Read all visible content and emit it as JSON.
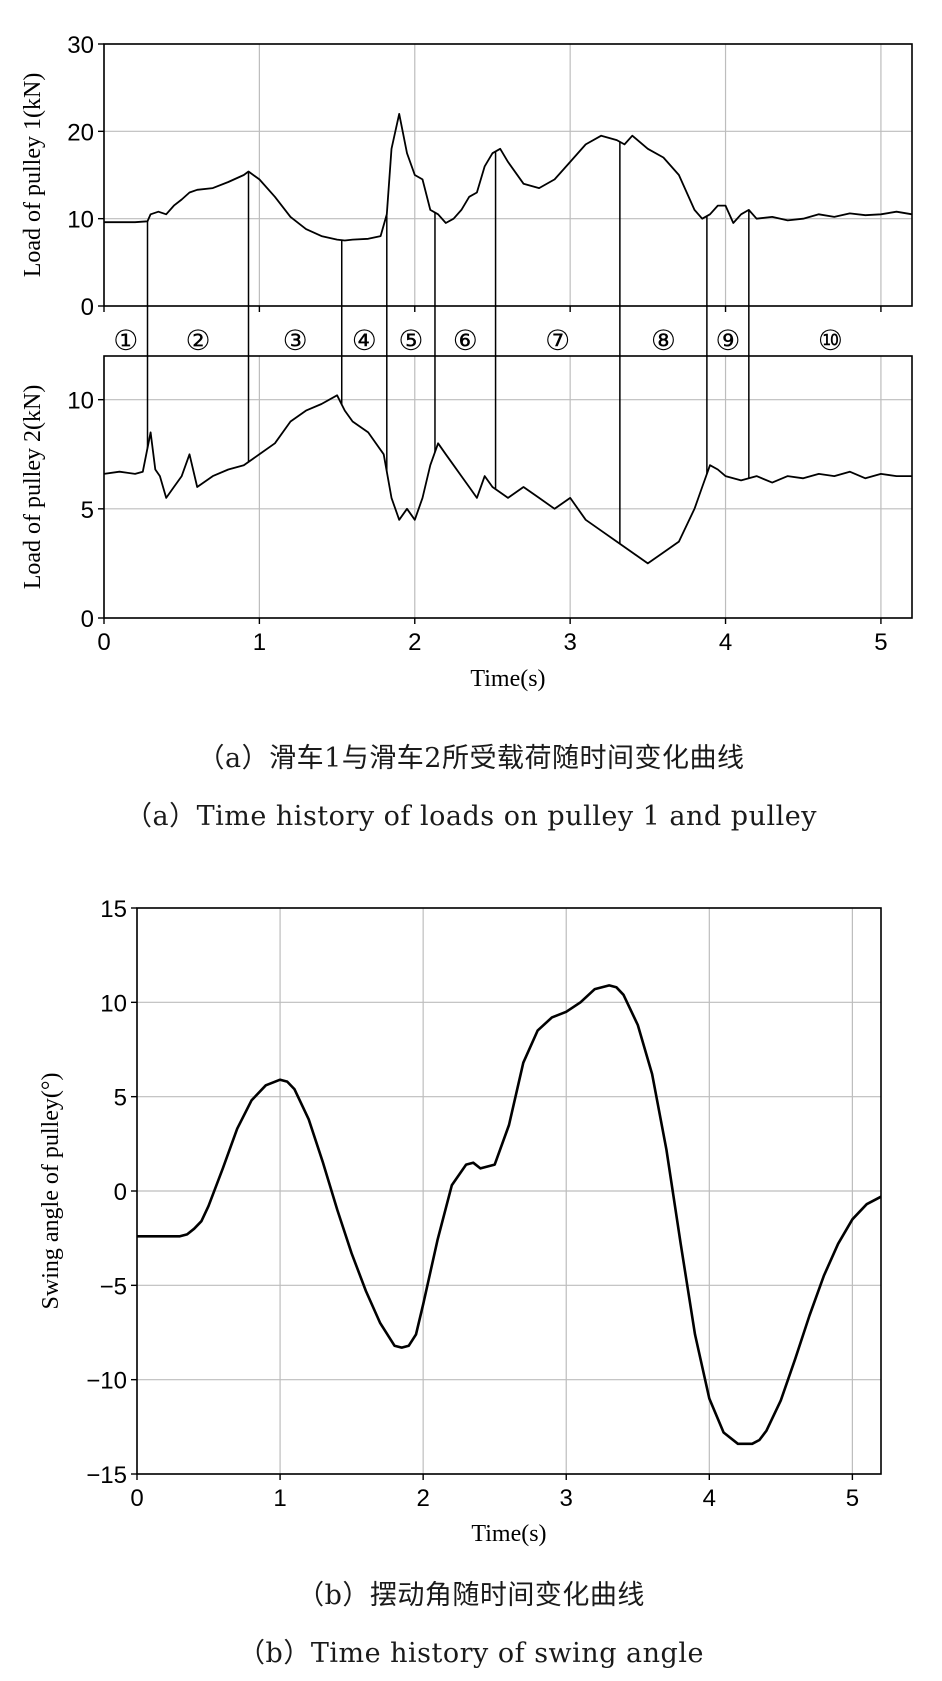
{
  "captions": {
    "a_cn": "（a）滑车1与滑车2所受载荷随时间变化曲线",
    "a_en": "（a）Time history of loads on pulley 1 and pulley",
    "b_cn": "（b）摆动角随时间变化曲线",
    "b_en": "（b）Time history of swing angle"
  },
  "chart_data": [
    {
      "type": "line",
      "title": "",
      "xlabel": "",
      "ylabel": "Load of pulley  1(kN)",
      "xlim": [
        0,
        5.2
      ],
      "ylim": [
        0,
        30
      ],
      "yticks": [
        0,
        10,
        20,
        30
      ],
      "xticks": [
        0,
        1,
        2,
        3,
        4,
        5
      ],
      "grid": true,
      "color": "#000000",
      "series": [
        {
          "x": [
            0,
            0.1,
            0.2,
            0.28,
            0.3,
            0.35,
            0.4,
            0.45,
            0.5,
            0.55,
            0.6,
            0.7,
            0.8,
            0.9,
            0.93,
            1.0,
            1.1,
            1.2,
            1.3,
            1.4,
            1.5,
            1.55,
            1.6,
            1.7,
            1.78,
            1.82,
            1.85,
            1.9,
            1.95,
            2.0,
            2.05,
            2.1,
            2.15,
            2.2,
            2.25,
            2.3,
            2.35,
            2.4,
            2.45,
            2.5,
            2.55,
            2.6,
            2.7,
            2.8,
            2.9,
            3.0,
            3.1,
            3.2,
            3.3,
            3.35,
            3.4,
            3.5,
            3.6,
            3.7,
            3.8,
            3.85,
            3.9,
            3.95,
            4.0,
            4.05,
            4.1,
            4.15,
            4.2,
            4.3,
            4.4,
            4.5,
            4.6,
            4.7,
            4.8,
            4.9,
            5.0,
            5.1,
            5.2
          ],
          "y": [
            9.6,
            9.6,
            9.6,
            9.7,
            10.5,
            10.8,
            10.5,
            11.5,
            12.2,
            13.0,
            13.3,
            13.5,
            14.2,
            15.0,
            15.4,
            14.5,
            12.5,
            10.2,
            8.8,
            8.0,
            7.6,
            7.5,
            7.6,
            7.7,
            8.0,
            10.5,
            18.0,
            22.0,
            17.5,
            15.0,
            14.5,
            11.0,
            10.5,
            9.5,
            10.0,
            11.0,
            12.5,
            13.0,
            16.0,
            17.5,
            18.0,
            16.5,
            14.0,
            13.5,
            14.5,
            16.5,
            18.5,
            19.5,
            19.0,
            18.5,
            19.5,
            18.0,
            17.0,
            15.0,
            11.0,
            10.0,
            10.5,
            11.5,
            11.5,
            9.5,
            10.5,
            11.0,
            10.0,
            10.2,
            9.8,
            10.0,
            10.5,
            10.2,
            10.6,
            10.4,
            10.5,
            10.8,
            10.5
          ]
        }
      ]
    },
    {
      "type": "line",
      "title": "",
      "xlabel": "Time(s)",
      "ylabel": "Load of pulley  2(kN)",
      "xlim": [
        0,
        5.2
      ],
      "ylim": [
        0,
        12
      ],
      "yticks": [
        0,
        5,
        10
      ],
      "xticks": [
        0,
        1,
        2,
        3,
        4,
        5
      ],
      "xticklabels": [
        "0",
        "1",
        "2",
        "3",
        "4",
        "5"
      ],
      "grid": true,
      "color": "#000000",
      "series": [
        {
          "x": [
            0,
            0.1,
            0.2,
            0.25,
            0.3,
            0.33,
            0.36,
            0.4,
            0.45,
            0.5,
            0.55,
            0.6,
            0.7,
            0.8,
            0.9,
            1.0,
            1.1,
            1.2,
            1.3,
            1.4,
            1.5,
            1.55,
            1.6,
            1.7,
            1.8,
            1.85,
            1.9,
            1.95,
            2.0,
            2.05,
            2.1,
            2.15,
            2.2,
            2.25,
            2.3,
            2.35,
            2.4,
            2.45,
            2.5,
            2.6,
            2.7,
            2.8,
            2.9,
            3.0,
            3.1,
            3.2,
            3.3,
            3.4,
            3.5,
            3.6,
            3.7,
            3.8,
            3.85,
            3.9,
            3.95,
            4.0,
            4.1,
            4.2,
            4.3,
            4.4,
            4.5,
            4.6,
            4.7,
            4.8,
            4.9,
            5.0,
            5.1,
            5.2
          ],
          "y": [
            6.6,
            6.7,
            6.6,
            6.7,
            8.5,
            6.8,
            6.5,
            5.5,
            6.0,
            6.5,
            7.5,
            6.0,
            6.5,
            6.8,
            7.0,
            7.5,
            8.0,
            9.0,
            9.5,
            9.8,
            10.2,
            9.5,
            9.0,
            8.5,
            7.5,
            5.5,
            4.5,
            5.0,
            4.5,
            5.5,
            7.0,
            8.0,
            7.5,
            7.0,
            6.5,
            6.0,
            5.5,
            6.5,
            6.0,
            5.5,
            6.0,
            5.5,
            5.0,
            5.5,
            4.5,
            4.0,
            3.5,
            3.0,
            2.5,
            3.0,
            3.5,
            5.0,
            6.0,
            7.0,
            6.8,
            6.5,
            6.3,
            6.5,
            6.2,
            6.5,
            6.4,
            6.6,
            6.5,
            6.7,
            6.4,
            6.6,
            6.5,
            6.5
          ]
        }
      ],
      "segment_labels": [
        "①",
        "②",
        "③",
        "④",
        "⑤",
        "⑥",
        "⑦",
        "⑧",
        "⑨",
        "⑩"
      ],
      "segment_boundaries": [
        0.28,
        0.93,
        1.53,
        1.82,
        2.13,
        2.52,
        3.32,
        3.88,
        4.15
      ]
    },
    {
      "type": "line",
      "title": "",
      "xlabel": "Time(s)",
      "ylabel": "Swing angle of pulley(°)",
      "xlim": [
        0,
        5.2
      ],
      "ylim": [
        -15,
        15
      ],
      "yticks": [
        -15,
        -10,
        -5,
        0,
        5,
        10,
        15
      ],
      "yticklabels": [
        "−15",
        "−10",
        "−5",
        "0",
        "5",
        "10",
        "15"
      ],
      "xticks": [
        0,
        1,
        2,
        3,
        4,
        5
      ],
      "grid": true,
      "color": "#000000",
      "series": [
        {
          "x": [
            0,
            0.1,
            0.2,
            0.3,
            0.35,
            0.4,
            0.45,
            0.5,
            0.6,
            0.7,
            0.8,
            0.9,
            1.0,
            1.05,
            1.1,
            1.2,
            1.3,
            1.4,
            1.5,
            1.6,
            1.7,
            1.8,
            1.85,
            1.9,
            1.95,
            2.0,
            2.1,
            2.2,
            2.3,
            2.35,
            2.4,
            2.5,
            2.6,
            2.7,
            2.8,
            2.9,
            3.0,
            3.1,
            3.2,
            3.3,
            3.35,
            3.4,
            3.5,
            3.6,
            3.7,
            3.8,
            3.9,
            4.0,
            4.1,
            4.2,
            4.3,
            4.35,
            4.4,
            4.5,
            4.6,
            4.7,
            4.8,
            4.9,
            5.0,
            5.1,
            5.2
          ],
          "y": [
            -2.4,
            -2.4,
            -2.4,
            -2.4,
            -2.3,
            -2.0,
            -1.6,
            -0.8,
            1.2,
            3.3,
            4.8,
            5.6,
            5.9,
            5.8,
            5.4,
            3.8,
            1.5,
            -1.0,
            -3.3,
            -5.3,
            -7.0,
            -8.2,
            -8.3,
            -8.2,
            -7.6,
            -6.0,
            -2.6,
            0.3,
            1.4,
            1.5,
            1.2,
            1.4,
            3.5,
            6.8,
            8.5,
            9.2,
            9.5,
            10.0,
            10.7,
            10.9,
            10.8,
            10.4,
            8.8,
            6.2,
            2.2,
            -2.8,
            -7.6,
            -11.0,
            -12.8,
            -13.4,
            -13.4,
            -13.2,
            -12.7,
            -11.1,
            -8.9,
            -6.6,
            -4.5,
            -2.8,
            -1.5,
            -0.7,
            -0.3
          ]
        }
      ]
    }
  ]
}
